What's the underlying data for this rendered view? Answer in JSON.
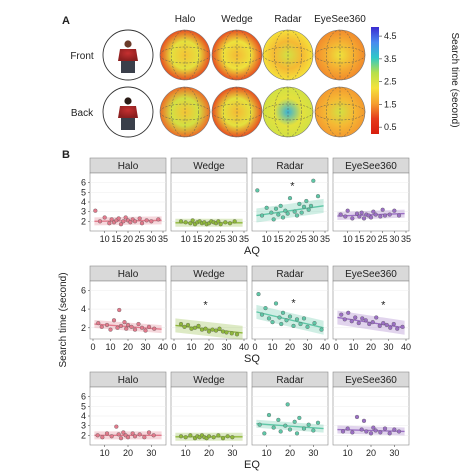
{
  "panel_labels": {
    "a": "A",
    "b": "B"
  },
  "panel_a": {
    "conditions": [
      "Halo",
      "Wedge",
      "Radar",
      "EyeSee360"
    ],
    "rows": [
      "Front",
      "Back"
    ],
    "colorbar": {
      "label": "Search time (second)",
      "ticks": [
        "4.5",
        "3.5",
        "2.5",
        "1.5",
        "0.5"
      ],
      "range": [
        0.2,
        4.9
      ],
      "colors": [
        "#3a2bd0",
        "#4a8af0",
        "#2ec8c8",
        "#b8e04a",
        "#f5e23a",
        "#f5a030",
        "#e53b1c",
        "#d81e0e"
      ]
    },
    "heatmap_levels": {
      "Front": {
        "Halo": [
          1.9,
          2.4,
          1.0
        ],
        "Wedge": [
          1.8,
          2.3,
          1.0
        ],
        "Radar": [
          2.6,
          1.8,
          2.2
        ],
        "EyeSee360": [
          2.3,
          1.7,
          1.4
        ]
      },
      "Back": {
        "Halo": [
          1.9,
          2.6,
          1.2
        ],
        "Wedge": [
          1.8,
          2.4,
          1.0
        ],
        "Radar": [
          3.8,
          2.4,
          2.6
        ],
        "EyeSee360": [
          2.6,
          1.8,
          1.5
        ]
      }
    }
  },
  "panel_b": {
    "ylabel": "Search time (second)",
    "chart_data": [
      {
        "type": "scatter",
        "xlabel": "AQ",
        "xlim": [
          5,
          35
        ],
        "xticks": [
          "10",
          "15",
          "20",
          "25",
          "30",
          "35"
        ],
        "ylim": [
          1,
          7
        ],
        "yticks": [
          "2",
          "3",
          "4",
          "5",
          "6"
        ],
        "facets": [
          {
            "name": "Halo",
            "color": "#e27a8c",
            "significant": false,
            "x": [
              6,
              8,
              10,
              12,
              13,
              14,
              15,
              16,
              17,
              18,
              19,
              20,
              21,
              22,
              23,
              25,
              26,
              28,
              30,
              33
            ],
            "y": [
              3.1,
              2.0,
              2.4,
              1.8,
              2.2,
              1.9,
              2.1,
              2.3,
              1.7,
              2.0,
              2.4,
              2.1,
              1.9,
              2.2,
              2.0,
              2.3,
              1.8,
              2.1,
              2.0,
              2.2
            ],
            "fit": [
              2.0,
              2.1
            ]
          },
          {
            "name": "Wedge",
            "color": "#8fb83a",
            "significant": false,
            "x": [
              8,
              10,
              12,
              13,
              14,
              15,
              16,
              17,
              18,
              19,
              20,
              21,
              22,
              23,
              24,
              25,
              27,
              29,
              31
            ],
            "y": [
              2.0,
              1.9,
              1.8,
              2.1,
              1.7,
              1.9,
              2.0,
              1.8,
              1.9,
              1.7,
              1.8,
              2.0,
              1.9,
              1.8,
              2.0,
              1.7,
              1.9,
              1.8,
              2.0
            ],
            "fit": [
              1.85,
              1.85
            ]
          },
          {
            "name": "Radar",
            "color": "#5fc7a7",
            "significant": true,
            "star": [
              21,
              5.6
            ],
            "x": [
              6,
              8,
              10,
              12,
              13,
              14,
              15,
              16,
              17,
              18,
              19,
              20,
              22,
              23,
              24,
              25,
              26,
              27,
              28,
              29,
              30,
              32
            ],
            "y": [
              5.2,
              2.6,
              3.4,
              2.9,
              2.2,
              3.3,
              2.7,
              3.6,
              2.4,
              3.1,
              2.8,
              4.4,
              3.0,
              2.6,
              3.8,
              2.9,
              3.5,
              4.1,
              3.2,
              3.6,
              6.2,
              4.6
            ],
            "fit": [
              2.6,
              3.6
            ]
          },
          {
            "name": "EyeSee360",
            "color": "#9b6fc4",
            "significant": false,
            "x": [
              7,
              9,
              10,
              12,
              14,
              15,
              16,
              17,
              18,
              19,
              20,
              21,
              22,
              24,
              25,
              26,
              28,
              30,
              32
            ],
            "y": [
              2.7,
              2.5,
              3.1,
              2.3,
              2.8,
              2.5,
              2.9,
              2.3,
              2.7,
              2.6,
              2.4,
              3.0,
              2.7,
              2.5,
              3.2,
              2.6,
              2.7,
              3.1,
              2.6
            ],
            "fit": [
              2.55,
              2.8
            ]
          }
        ]
      },
      {
        "type": "scatter",
        "xlabel": "SQ",
        "xlim": [
          0,
          40
        ],
        "xticks": [
          "0",
          "10",
          "20",
          "30",
          "40"
        ],
        "ylim": [
          0.8,
          7
        ],
        "yticks": [
          "2",
          "4",
          "6"
        ],
        "facets": [
          {
            "name": "Halo",
            "color": "#e27a8c",
            "significant": false,
            "x": [
              3,
              5,
              8,
              10,
              12,
              14,
              15,
              16,
              18,
              19,
              20,
              22,
              24,
              26,
              28,
              30,
              32,
              35
            ],
            "y": [
              2.5,
              2.1,
              2.3,
              1.8,
              2.8,
              2.0,
              3.9,
              2.2,
              2.6,
              1.9,
              2.3,
              2.1,
              1.8,
              2.4,
              2.0,
              1.7,
              2.1,
              1.9
            ],
            "fit": [
              2.4,
              1.85
            ]
          },
          {
            "name": "Wedge",
            "color": "#8fb83a",
            "significant": true,
            "star": [
              18,
              4.4
            ],
            "x": [
              4,
              6,
              8,
              10,
              12,
              14,
              16,
              18,
              20,
              22,
              24,
              26,
              28,
              30,
              33,
              36
            ],
            "y": [
              2.4,
              2.1,
              2.3,
              1.9,
              2.0,
              2.2,
              1.8,
              1.9,
              1.6,
              1.8,
              1.7,
              1.9,
              1.6,
              1.5,
              1.4,
              1.3
            ],
            "fit": [
              2.25,
              1.45
            ]
          },
          {
            "name": "Radar",
            "color": "#5fc7a7",
            "significant": true,
            "star": [
              22,
              4.6
            ],
            "x": [
              2,
              4,
              6,
              8,
              10,
              12,
              14,
              15,
              16,
              18,
              20,
              22,
              24,
              26,
              28,
              30,
              34,
              38
            ],
            "y": [
              5.6,
              3.4,
              4.1,
              3.0,
              2.6,
              4.6,
              3.1,
              2.4,
              3.6,
              2.8,
              3.2,
              2.2,
              2.9,
              2.4,
              3.0,
              2.1,
              2.5,
              1.8
            ],
            "fit": [
              3.7,
              2.0
            ]
          },
          {
            "name": "EyeSee360",
            "color": "#9b6fc4",
            "significant": true,
            "star": [
              27,
              4.4
            ],
            "x": [
              3,
              5,
              7,
              9,
              11,
              13,
              15,
              17,
              19,
              21,
              23,
              25,
              27,
              29,
              31,
              33,
              35,
              38
            ],
            "y": [
              3.4,
              2.9,
              3.6,
              2.7,
              3.1,
              2.5,
              3.0,
              2.8,
              2.4,
              2.6,
              3.1,
              2.2,
              2.5,
              2.3,
              2.0,
              2.4,
              1.9,
              2.1
            ],
            "fit": [
              3.1,
              2.0
            ]
          }
        ]
      },
      {
        "type": "scatter",
        "xlabel": "EQ",
        "xlim": [
          5,
          35
        ],
        "xticks": [
          "10",
          "20",
          "30"
        ],
        "ylim": [
          1,
          7
        ],
        "yticks": [
          "2",
          "3",
          "4",
          "5",
          "6"
        ],
        "facets": [
          {
            "name": "Halo",
            "color": "#e27a8c",
            "significant": false,
            "x": [
              7,
              9,
              11,
              13,
              15,
              16,
              17,
              18,
              19,
              20,
              22,
              23,
              25,
              27,
              29,
              31
            ],
            "y": [
              2.0,
              1.8,
              2.2,
              1.9,
              2.9,
              2.1,
              1.7,
              2.3,
              2.0,
              1.8,
              2.2,
              1.9,
              2.1,
              1.8,
              2.3,
              2.0
            ],
            "fit": [
              2.0,
              2.0
            ]
          },
          {
            "name": "Wedge",
            "color": "#8fb83a",
            "significant": false,
            "x": [
              8,
              10,
              12,
              14,
              15,
              16,
              17,
              18,
              19,
              20,
              22,
              24,
              26,
              28,
              30
            ],
            "y": [
              1.9,
              1.8,
              2.0,
              1.7,
              1.9,
              1.8,
              2.0,
              1.8,
              1.7,
              1.9,
              1.8,
              2.0,
              1.7,
              1.9,
              1.8
            ],
            "fit": [
              1.85,
              1.85
            ]
          },
          {
            "name": "Radar",
            "color": "#5fc7a7",
            "significant": false,
            "x": [
              7,
              9,
              11,
              13,
              15,
              16,
              18,
              19,
              20,
              22,
              23,
              24,
              26,
              28,
              30,
              32
            ],
            "y": [
              3.1,
              2.2,
              4.1,
              2.8,
              3.6,
              2.4,
              3.0,
              5.2,
              2.6,
              3.4,
              2.2,
              3.8,
              2.7,
              3.1,
              2.5,
              3.3
            ],
            "fit": [
              3.2,
              2.7
            ]
          },
          {
            "name": "EyeSee360",
            "color": "#9b6fc4",
            "significant": false,
            "x": [
              8,
              10,
              12,
              14,
              16,
              17,
              18,
              20,
              21,
              22,
              24,
              26,
              28,
              30,
              32
            ],
            "y": [
              2.4,
              2.7,
              2.3,
              3.9,
              2.6,
              3.5,
              2.4,
              2.2,
              2.8,
              2.5,
              2.3,
              2.7,
              2.2,
              2.6,
              2.4
            ],
            "fit": [
              2.6,
              2.4
            ]
          }
        ]
      }
    ]
  }
}
